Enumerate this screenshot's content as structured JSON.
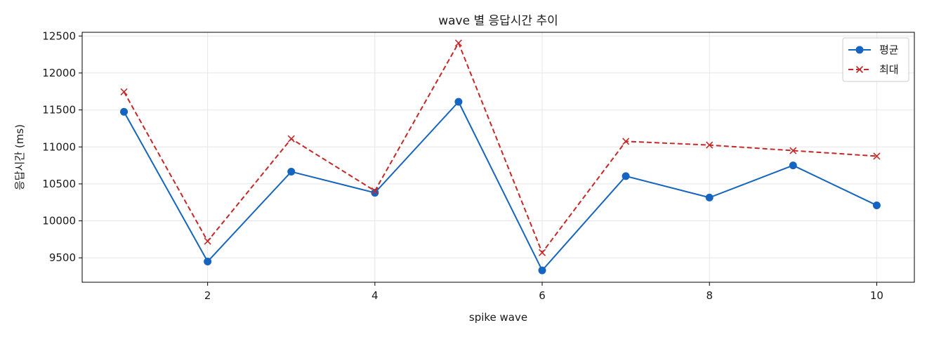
{
  "chart_data": {
    "type": "line",
    "title": "wave 별 응답시간 추이",
    "xlabel": "spike wave",
    "ylabel": "응답시간 (ms)",
    "x": [
      1,
      2,
      3,
      4,
      5,
      6,
      7,
      8,
      9,
      10
    ],
    "xlim": [
      0.5,
      10.45
    ],
    "ylim": [
      9170,
      12550
    ],
    "xticks": [
      2,
      4,
      6,
      8,
      10
    ],
    "yticks": [
      9500,
      10000,
      10500,
      11000,
      11500,
      12000,
      12500
    ],
    "grid": true,
    "legend_position": "top-right",
    "series": [
      {
        "name": "평균",
        "color": "#1565c0",
        "line_style": "solid",
        "marker": "circle",
        "values": [
          11475,
          9450,
          10665,
          10380,
          11610,
          9330,
          10605,
          10315,
          10750,
          10210
        ]
      },
      {
        "name": "최대",
        "color": "#c62828",
        "line_style": "dashed",
        "marker": "x",
        "values": [
          11745,
          9725,
          11110,
          10405,
          12405,
          9570,
          11075,
          11025,
          10950,
          10875
        ]
      }
    ]
  }
}
